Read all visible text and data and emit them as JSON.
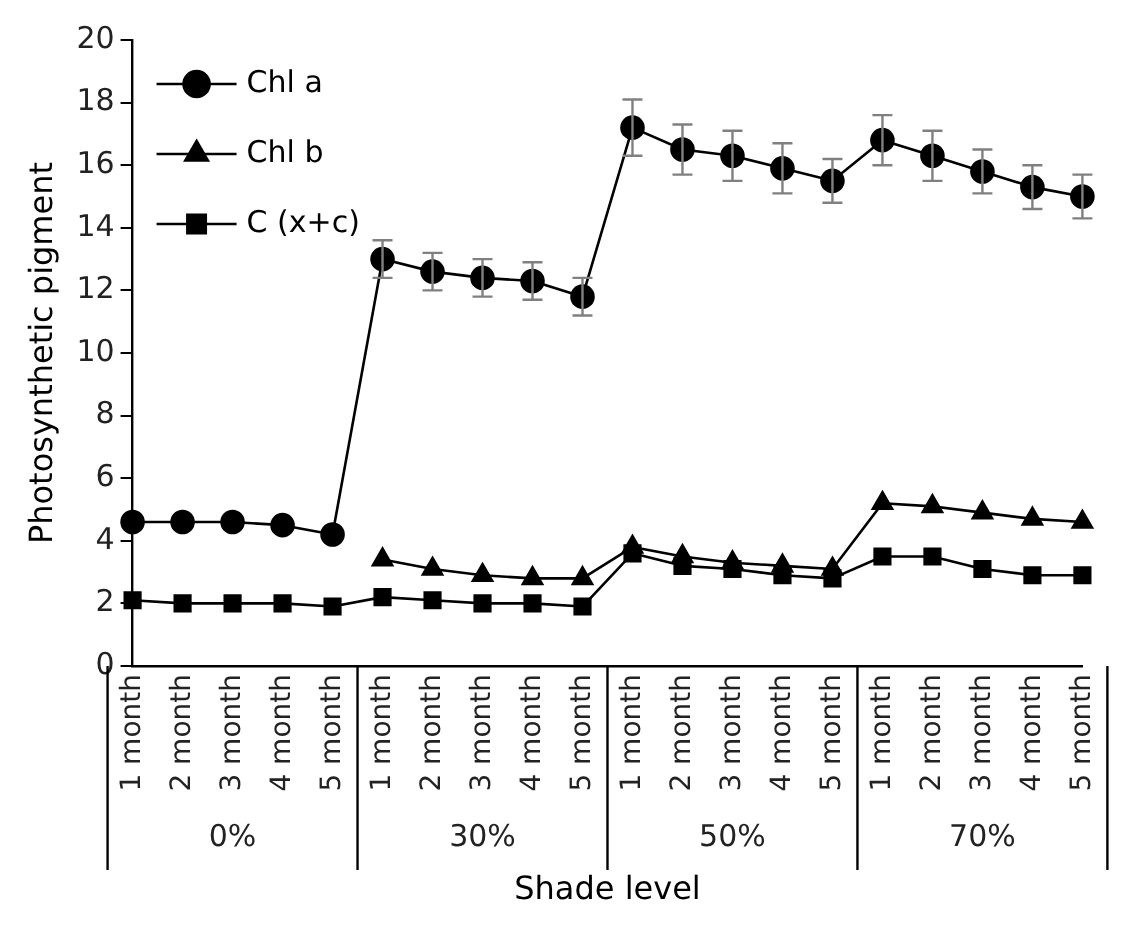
{
  "chart_data": {
    "type": "line",
    "xlabel": "Shade level",
    "ylabel": "Photosynthetic pigment",
    "categories": [
      "1 month",
      "2 month",
      "3 month",
      "4 month",
      "5 month",
      "1 month",
      "2 month",
      "3 month",
      "4 month",
      "5 month",
      "1 month",
      "2 month",
      "3 month",
      "4 month",
      "5 month",
      "1 month",
      "2 month",
      "3 month",
      "4 month",
      "5 month"
    ],
    "annotations": [
      "0%",
      "30%",
      "50%",
      "70%"
    ],
    "series": [
      {
        "name": "Chl a",
        "color": "#000000",
        "marker": "circle",
        "values": [
          4.6,
          4.6,
          4.6,
          4.5,
          4.2,
          13.0,
          12.6,
          12.4,
          12.3,
          11.8,
          17.2,
          16.5,
          16.3,
          15.9,
          15.5,
          16.8,
          16.3,
          15.8,
          15.3,
          15.0
        ],
        "errors": [
          null,
          null,
          null,
          null,
          null,
          0.6,
          0.6,
          0.6,
          0.6,
          0.6,
          0.9,
          0.8,
          0.8,
          0.8,
          0.7,
          0.8,
          0.8,
          0.7,
          0.7,
          0.7
        ]
      },
      {
        "name": "Chl b",
        "color": "#000000",
        "marker": "triangle",
        "values": [
          null,
          null,
          null,
          null,
          null,
          3.4,
          3.1,
          2.9,
          2.8,
          2.8,
          3.8,
          3.5,
          3.3,
          3.2,
          3.1,
          5.2,
          5.1,
          4.9,
          4.7,
          4.6
        ]
      },
      {
        "name": "C (x+c)",
        "color": "#000000",
        "marker": "square",
        "values": [
          2.1,
          2.0,
          2.0,
          2.0,
          1.9,
          2.2,
          2.1,
          2.0,
          2.0,
          1.9,
          3.6,
          3.2,
          3.1,
          2.9,
          2.8,
          3.5,
          3.5,
          3.1,
          2.9,
          2.9
        ]
      }
    ],
    "ylim": [
      0,
      20
    ],
    "yticks": [
      0,
      2,
      4,
      6,
      8,
      10,
      12,
      14,
      16,
      18,
      20
    ],
    "grid": false,
    "legend": "top left",
    "line_style": "solid"
  }
}
